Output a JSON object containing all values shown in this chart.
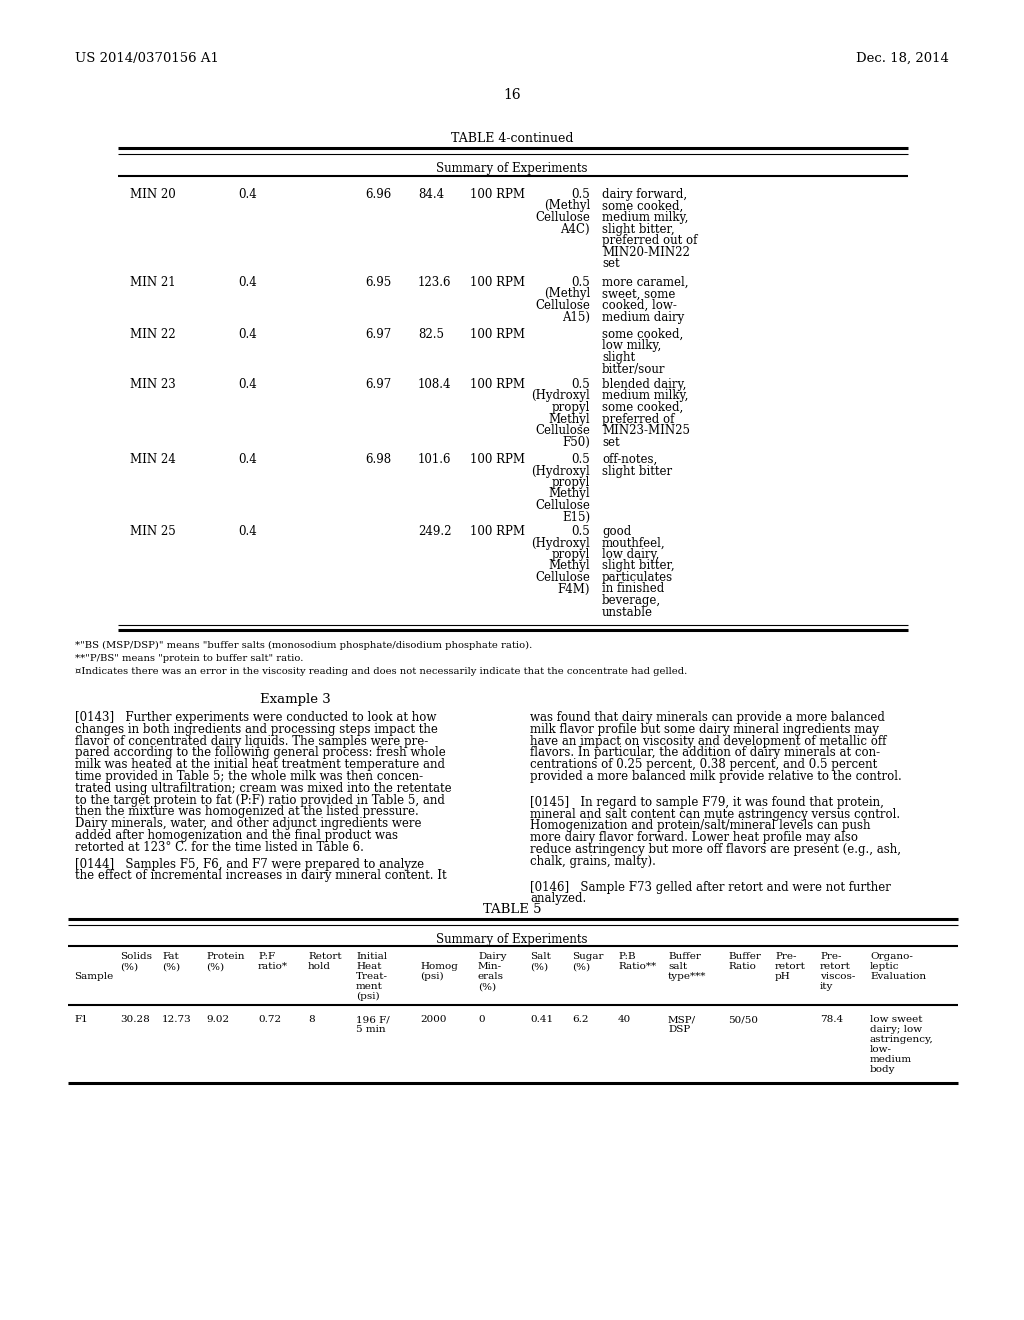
{
  "header_left": "US 2014/0370156 A1",
  "header_right": "Dec. 18, 2014",
  "page_number": "16",
  "table4_title": "TABLE 4-continued",
  "table4_subtitle": "Summary of Experiments",
  "table4_rows": [
    {
      "sample": "MIN 20",
      "col2": "0.4",
      "col4": "6.96",
      "col5": "84.4",
      "col6": "100 RPM",
      "col7_lines": [
        "0.5",
        "(Methyl",
        "Cellulose",
        "A4C)"
      ],
      "col8_lines": [
        "dairy forward,",
        "some cooked,",
        "medium milky,",
        "slight bitter,",
        "preferred out of",
        "MIN20-MIN22",
        "set"
      ]
    },
    {
      "sample": "MIN 21",
      "col2": "0.4",
      "col4": "6.95",
      "col5": "123.6",
      "col6": "100 RPM",
      "col7_lines": [
        "0.5",
        "(Methyl",
        "Cellulose",
        "A15)"
      ],
      "col8_lines": [
        "more caramel,",
        "sweet, some",
        "cooked, low-",
        "medium dairy"
      ]
    },
    {
      "sample": "MIN 22",
      "col2": "0.4",
      "col4": "6.97",
      "col5": "82.5",
      "col6": "100 RPM",
      "col7_lines": [],
      "col8_lines": [
        "some cooked,",
        "low milky,",
        "slight",
        "bitter/sour"
      ]
    },
    {
      "sample": "MIN 23",
      "col2": "0.4",
      "col4": "6.97",
      "col5": "108.4",
      "col6": "100 RPM",
      "col7_lines": [
        "0.5",
        "(Hydroxyl",
        "propyl",
        "Methyl",
        "Cellulose",
        "F50)"
      ],
      "col8_lines": [
        "blended dairy,",
        "medium milky,",
        "some cooked,",
        "preferred of",
        "MIN23-MIN25",
        "set"
      ]
    },
    {
      "sample": "MIN 24",
      "col2": "0.4",
      "col4": "6.98",
      "col5": "101.6",
      "col6": "100 RPM",
      "col7_lines": [
        "0.5",
        "(Hydroxyl",
        "propyl",
        "Methyl",
        "Cellulose",
        "E15)"
      ],
      "col8_lines": [
        "off-notes,",
        "slight bitter"
      ]
    },
    {
      "sample": "MIN 25",
      "col2": "0.4",
      "col4": "",
      "col5": "249.2",
      "col6": "100 RPM",
      "col7_lines": [
        "0.5",
        "(Hydroxyl",
        "propyl",
        "Methyl",
        "Cellulose",
        "F4M)"
      ],
      "col8_lines": [
        "good",
        "mouthfeel,",
        "low dairy,",
        "slight bitter,",
        "particulates",
        "in finished",
        "beverage,",
        "unstable"
      ]
    }
  ],
  "footnote1": "*\"BS (MSP/DSP)\" means \"buffer salts (monosodium phosphate/disodium phosphate ratio).",
  "footnote2": "**\"P/BS\" means \"protein to buffer salt\" ratio.",
  "footnote3": "¤Indicates there was an error in the viscosity reading and does not necessarily indicate that the concentrate had gelled.",
  "example3_title": "Example 3",
  "para143_left": [
    "[0143]   Further experiments were conducted to look at how",
    "changes in both ingredients and processing steps impact the",
    "flavor of concentrated dairy liquids. The samples were pre-",
    "pared according to the following general process: fresh whole",
    "milk was heated at the initial heat treatment temperature and",
    "time provided in Table 5; the whole milk was then concen-",
    "trated using ultrafiltration; cream was mixed into the retentate",
    "to the target protein to fat (P:F) ratio provided in Table 5, and",
    "then the mixture was homogenized at the listed pressure.",
    "Dairy minerals, water, and other adjunct ingredients were",
    "added after homogenization and the final product was",
    "retorted at 123° C. for the time listed in Table 6."
  ],
  "para143_right": [
    "was found that dairy minerals can provide a more balanced",
    "milk flavor profile but some dairy mineral ingredients may",
    "have an impact on viscosity and development of metallic off",
    "flavors. In particular, the addition of dairy minerals at con-",
    "centrations of 0.25 percent, 0.38 percent, and 0.5 percent",
    "provided a more balanced milk provide relative to the control."
  ],
  "para144_left": [
    "[0144]   Samples F5, F6, and F7 were prepared to analyze",
    "the effect of incremental increases in dairy mineral content. It"
  ],
  "para145_right": [
    "[0145]   In regard to sample F79, it was found that protein,",
    "mineral and salt content can mute astringency versus control.",
    "Homogenization and protein/salt/mineral levels can push",
    "more dairy flavor forward. Lower heat profile may also",
    "reduce astringency but more off flavors are present (e.g., ash,",
    "chalk, grains, malty)."
  ],
  "para146_right": [
    "[0146]   Sample F73 gelled after retort and were not further",
    "analyzed."
  ],
  "table5_title": "TABLE 5",
  "table5_subtitle": "Summary of Experiments",
  "t5_col_labels_line1": [
    "",
    "Solids",
    "Fat",
    "Protein",
    "P:F",
    "Retort",
    "Initial",
    "",
    "Dairy",
    "Salt",
    "Sugar",
    "P:B",
    "Buffer",
    "Buffer",
    "Pre-",
    "Pre-",
    "Organo-"
  ],
  "t5_col_labels_line2": [
    "",
    "(%)",
    "(%)",
    "(%)",
    "ratio*",
    "hold",
    "Heat",
    "Homog",
    "Min-",
    "(%)",
    "(%)",
    "Ratio**",
    "salt",
    "Ratio",
    "retort",
    "retort",
    "leptic"
  ],
  "t5_col_labels_line3": [
    "Sample",
    "",
    "",
    "",
    "",
    "",
    "Treat-",
    "(psi)",
    "erals",
    "",
    "",
    "",
    "type***",
    "",
    "pH",
    "viscos-",
    "Evaluation"
  ],
  "t5_col_labels_line4": [
    "",
    "",
    "",
    "",
    "",
    "",
    "ment",
    "",
    "(%)",
    "",
    "",
    "",
    "",
    "",
    "",
    "ity",
    ""
  ],
  "t5_col_labels_line5": [
    "",
    "",
    "",
    "",
    "",
    "",
    "(psi)",
    "",
    "",
    "",
    "",
    "",
    "",
    "",
    "",
    "",
    ""
  ],
  "t5_row1": [
    "F1",
    "30.28",
    "12.73",
    "9.02",
    "0.72",
    "8",
    "196 F/",
    "2000",
    "0",
    "0.41",
    "6.2",
    "40",
    "MSP/",
    "50/50",
    "",
    "78.4",
    "low sweet"
  ],
  "t5_row1b": [
    "",
    "",
    "",
    "",
    "",
    "",
    "5 min",
    "",
    "",
    "",
    "",
    "",
    "DSP",
    "",
    "",
    "",
    "dairy; low"
  ],
  "t5_row1c": [
    "",
    "",
    "",
    "",
    "",
    "",
    "",
    "",
    "",
    "",
    "",
    "",
    "",
    "",
    "",
    "",
    "astringency,"
  ],
  "t5_row1d": [
    "",
    "",
    "",
    "",
    "",
    "",
    "",
    "",
    "",
    "",
    "",
    "",
    "",
    "",
    "",
    "",
    "low-"
  ],
  "t5_row1e": [
    "",
    "",
    "",
    "",
    "",
    "",
    "",
    "",
    "",
    "",
    "",
    "",
    "",
    "",
    "",
    "",
    "medium"
  ],
  "t5_row1f": [
    "",
    "",
    "",
    "",
    "",
    "",
    "",
    "",
    "",
    "",
    "",
    "",
    "",
    "",
    "",
    "",
    "body"
  ]
}
